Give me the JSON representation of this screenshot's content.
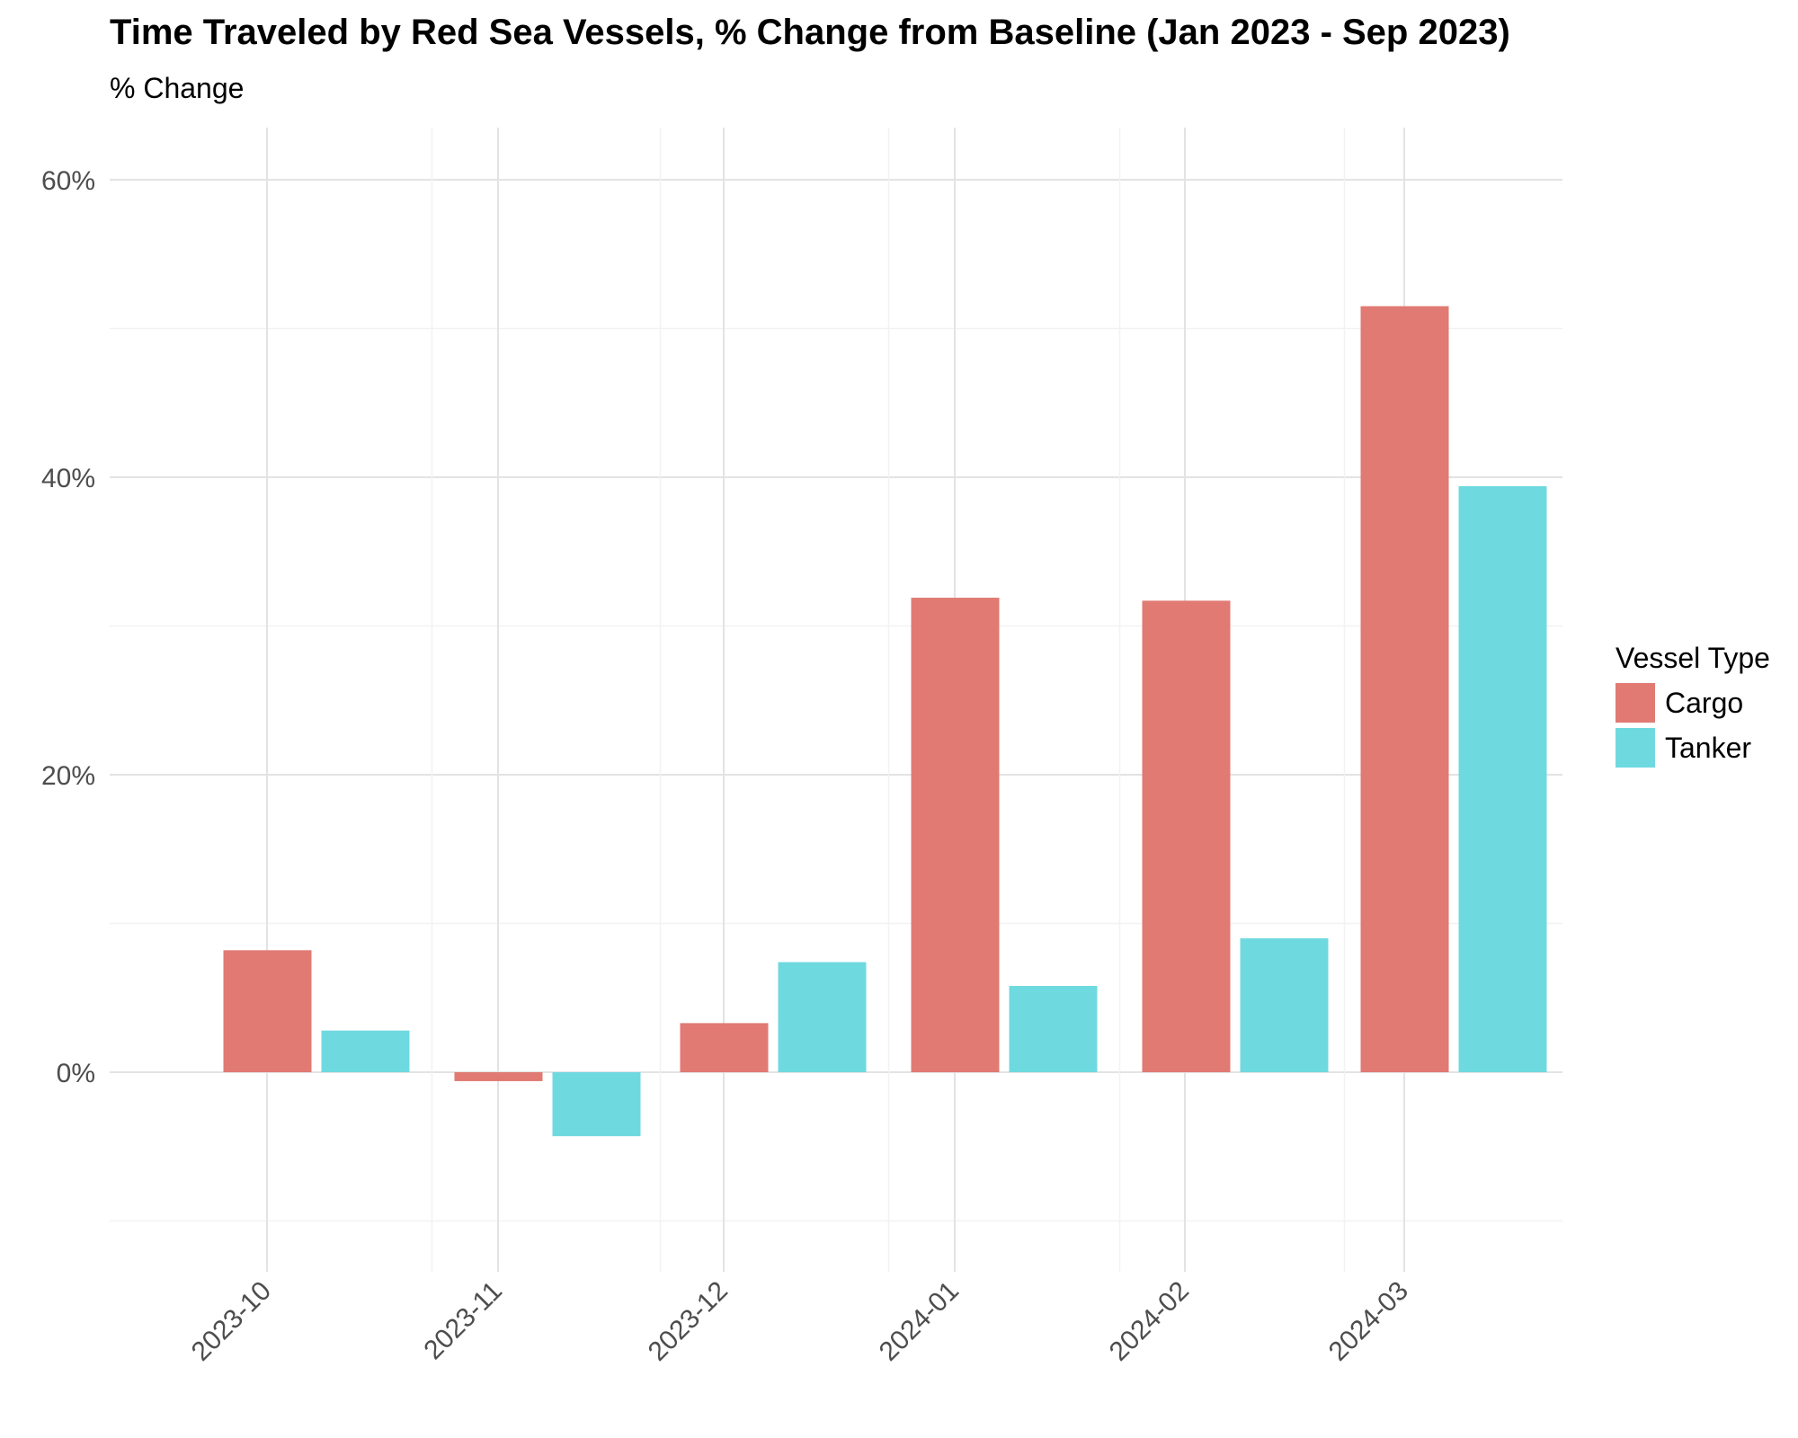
{
  "chart_data": {
    "type": "bar",
    "title": "Time Traveled by Red Sea Vessels, % Change from Baseline (Jan 2023 - Sep 2023)",
    "subtitle": "% Change",
    "categories": [
      "2023-10",
      "2023-11",
      "2023-12",
      "2024-01",
      "2024-02",
      "2024-03"
    ],
    "series": [
      {
        "name": "Cargo",
        "values": [
          8.2,
          -0.6,
          3.3,
          31.9,
          31.7,
          51.5
        ],
        "color": "#E07A73"
      },
      {
        "name": "Tanker",
        "values": [
          2.8,
          -4.3,
          7.4,
          5.8,
          9.0,
          39.4
        ],
        "color": "#6FD9E0"
      }
    ],
    "ylim": [
      -13,
      63
    ],
    "y_ticks": [
      0,
      20,
      40,
      60
    ],
    "y_tick_labels": [
      "0%",
      "20%",
      "40%",
      "60%"
    ],
    "grid": true,
    "legend": {
      "title": "Vessel Type",
      "position": "right"
    }
  }
}
